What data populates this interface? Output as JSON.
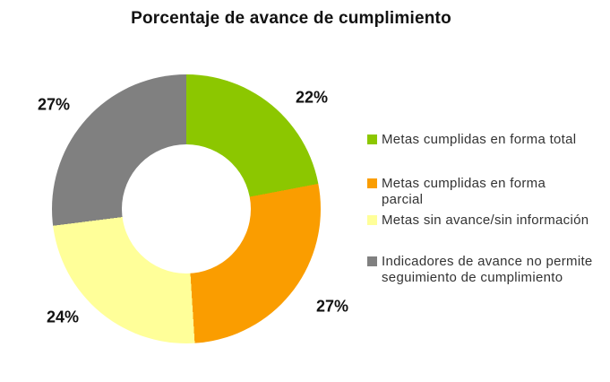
{
  "chart_data": {
    "type": "pie",
    "subtype": "donut",
    "title": "Porcentaje de avance de cumplimiento",
    "hole_ratio": 0.48,
    "start_angle_deg": 0,
    "direction": "clockwise",
    "legend_position": "right",
    "categories": [
      "Metas cumplidas en forma total",
      "Metas cumplidas en forma parcial",
      "Metas sin avance/sin información",
      "Indicadores de avance no permite seguimiento de cumplimiento"
    ],
    "values": [
      22,
      27,
      24,
      27
    ],
    "slices": [
      {
        "name": "Metas cumplidas en forma total",
        "value": 22,
        "label": "22%",
        "color": "#8CC700"
      },
      {
        "name": "Metas cumplidas en forma parcial",
        "value": 27,
        "label": "27%",
        "color": "#FA9D00"
      },
      {
        "name": "Metas sin avance/sin información",
        "value": 24,
        "label": "24%",
        "color": "#FFFF99"
      },
      {
        "name": "Indicadores de avance no permite seguimiento de cumplimiento",
        "value": 27,
        "label": "27%",
        "color": "#808080"
      }
    ]
  },
  "legend": {
    "items": [
      {
        "lines": [
          "Metas cumplidas en forma total"
        ]
      },
      {
        "lines": [
          "Metas cumplidas en forma",
          "parcial"
        ]
      },
      {
        "lines": [
          "Metas sin avance/sin información"
        ]
      },
      {
        "lines": [
          "Indicadores de avance no permite",
          "seguimiento de cumplimiento"
        ]
      }
    ]
  }
}
